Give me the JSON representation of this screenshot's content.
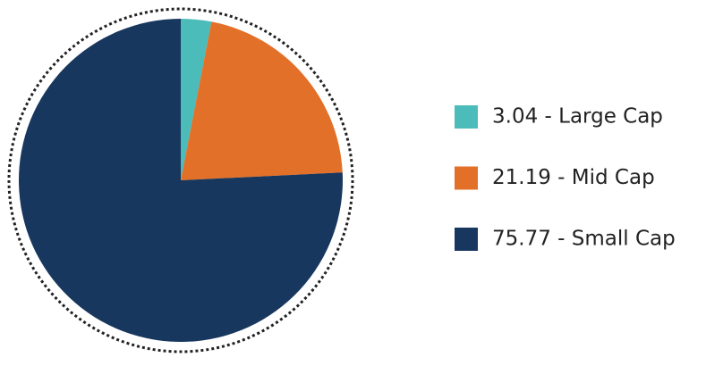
{
  "chart_data": {
    "type": "pie",
    "categories": [
      "3.04 - Large Cap",
      "21.19 - Mid Cap",
      "75.77 - Small Cap"
    ],
    "values": [
      3.04,
      21.19,
      75.77
    ],
    "colors": [
      "#4bbcb9",
      "#e27028",
      "#17375e"
    ],
    "legend": "right"
  }
}
